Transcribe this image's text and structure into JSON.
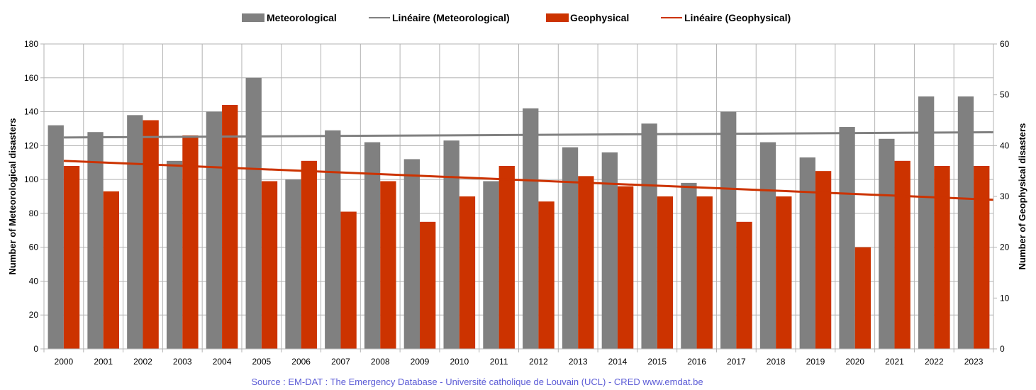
{
  "chart_data": {
    "type": "bar",
    "categories": [
      "2000",
      "2001",
      "2002",
      "2003",
      "2004",
      "2005",
      "2006",
      "2007",
      "2008",
      "2009",
      "2010",
      "2011",
      "2012",
      "2013",
      "2014",
      "2015",
      "2016",
      "2017",
      "2018",
      "2019",
      "2020",
      "2021",
      "2022",
      "2023"
    ],
    "series": [
      {
        "name": "Meteorological",
        "axis": "left",
        "color": "#808080",
        "values": [
          132,
          128,
          138,
          111,
          140,
          160,
          100,
          129,
          122,
          112,
          123,
          99,
          142,
          119,
          116,
          133,
          98,
          140,
          122,
          113,
          131,
          124,
          149,
          149
        ]
      },
      {
        "name": "Geophysical",
        "axis": "right",
        "color": "#cc3300",
        "values": [
          36,
          31,
          45,
          42,
          48,
          33,
          37,
          27,
          33,
          25,
          30,
          36,
          29,
          34,
          32,
          30,
          30,
          25,
          30,
          35,
          20,
          37,
          36,
          36
        ]
      }
    ],
    "trendlines": [
      {
        "name": "Linéaire (Meteorological)",
        "axis": "left",
        "color": "#808080",
        "start": 124.8,
        "end": 127.8
      },
      {
        "name": "Linéaire (Geophysical)",
        "axis": "right",
        "color": "#cc3300",
        "start": 37.0,
        "end": 29.5
      }
    ],
    "ylabel_left": "Number of Meteorological disasters",
    "ylabel_right": "Number of Geophysical disasters",
    "ylim_left": [
      0,
      180
    ],
    "ylim_right": [
      0,
      60
    ],
    "yticks_left": [
      "0",
      "20",
      "40",
      "60",
      "80",
      "100",
      "120",
      "140",
      "160",
      "180"
    ],
    "yticks_right": [
      "0",
      "10",
      "20",
      "30",
      "40",
      "50",
      "60"
    ],
    "grid": true,
    "legend": "top-center",
    "legend_entries": [
      "Meteorological",
      "Linéaire (Meteorological)",
      "Geophysical",
      "Linéaire (Geophysical)"
    ]
  },
  "source_text": "Source : EM-DAT : The Emergency Database - Université catholique de Louvain (UCL) - CRED  www.emdat.be"
}
